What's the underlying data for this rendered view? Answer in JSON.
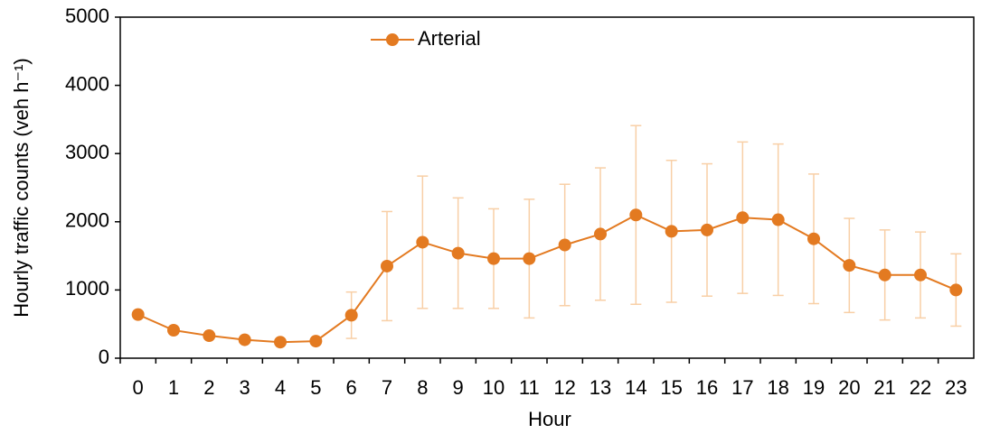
{
  "chart_data": {
    "type": "line",
    "y_label": "Hourly traffic counts (veh h⁻¹)",
    "x_label": "Hour",
    "categories": [
      "0",
      "1",
      "2",
      "3",
      "4",
      "5",
      "6",
      "7",
      "8",
      "9",
      "10",
      "11",
      "12",
      "13",
      "14",
      "15",
      "16",
      "17",
      "18",
      "19",
      "20",
      "21",
      "22",
      "23"
    ],
    "series": [
      {
        "name": "Arterial",
        "color": "#e37a21",
        "error_color": "#f8cfa6",
        "values": [
          640,
          410,
          330,
          270,
          235,
          250,
          630,
          1350,
          1700,
          1540,
          1460,
          1460,
          1660,
          1820,
          2100,
          1860,
          1880,
          2060,
          2030,
          1750,
          1360,
          1220,
          1220,
          1000
        ],
        "errors": [
          40,
          30,
          30,
          30,
          30,
          30,
          340,
          800,
          970,
          810,
          730,
          870,
          890,
          970,
          1310,
          1040,
          970,
          1110,
          1110,
          950,
          690,
          660,
          630,
          530
        ]
      }
    ],
    "ylim": [
      0,
      5000
    ],
    "yticks": [
      0,
      1000,
      2000,
      3000,
      4000,
      5000
    ],
    "legend": "top-left"
  }
}
